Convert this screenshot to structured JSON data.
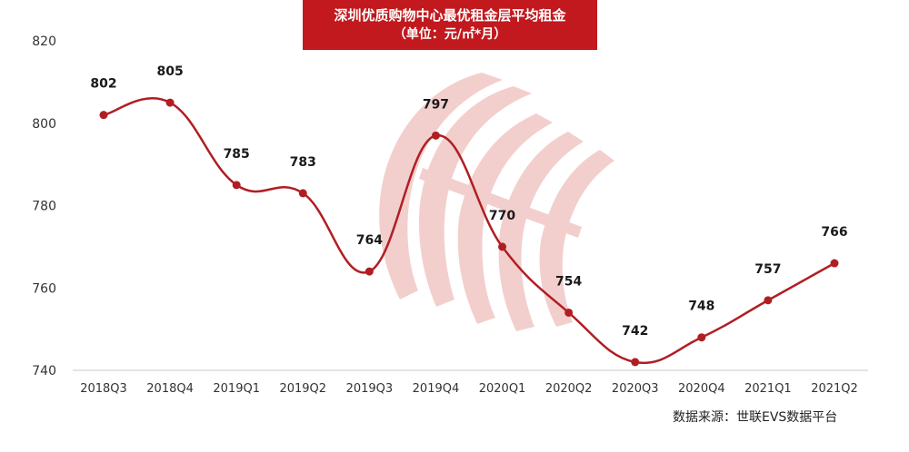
{
  "title": {
    "line1": "深圳优质购物中心最优租金层平均租金",
    "line2": "（单位：元/㎡*月）"
  },
  "source": "数据来源：世联EVS数据平台",
  "colors": {
    "title_bg": "#c1191e",
    "line": "#b01e23",
    "watermark": "#e8a8a6"
  },
  "chart_data": {
    "type": "line",
    "title": "深圳优质购物中心最优租金层平均租金",
    "subtitle": "（单位：元/㎡*月）",
    "xlabel": "",
    "ylabel": "",
    "categories": [
      "2018Q3",
      "2018Q4",
      "2019Q1",
      "2019Q2",
      "2019Q3",
      "2019Q4",
      "2020Q1",
      "2020Q2",
      "2020Q3",
      "2020Q4",
      "2021Q1",
      "2021Q2"
    ],
    "series": [
      {
        "values": [
          802,
          805,
          785,
          783,
          764,
          797,
          770,
          754,
          742,
          748,
          757,
          766
        ]
      }
    ],
    "ylim": [
      740,
      820
    ],
    "yticks": [
      740,
      760,
      780,
      800,
      820
    ],
    "grid": false,
    "legend": "none",
    "data_labels": true
  }
}
